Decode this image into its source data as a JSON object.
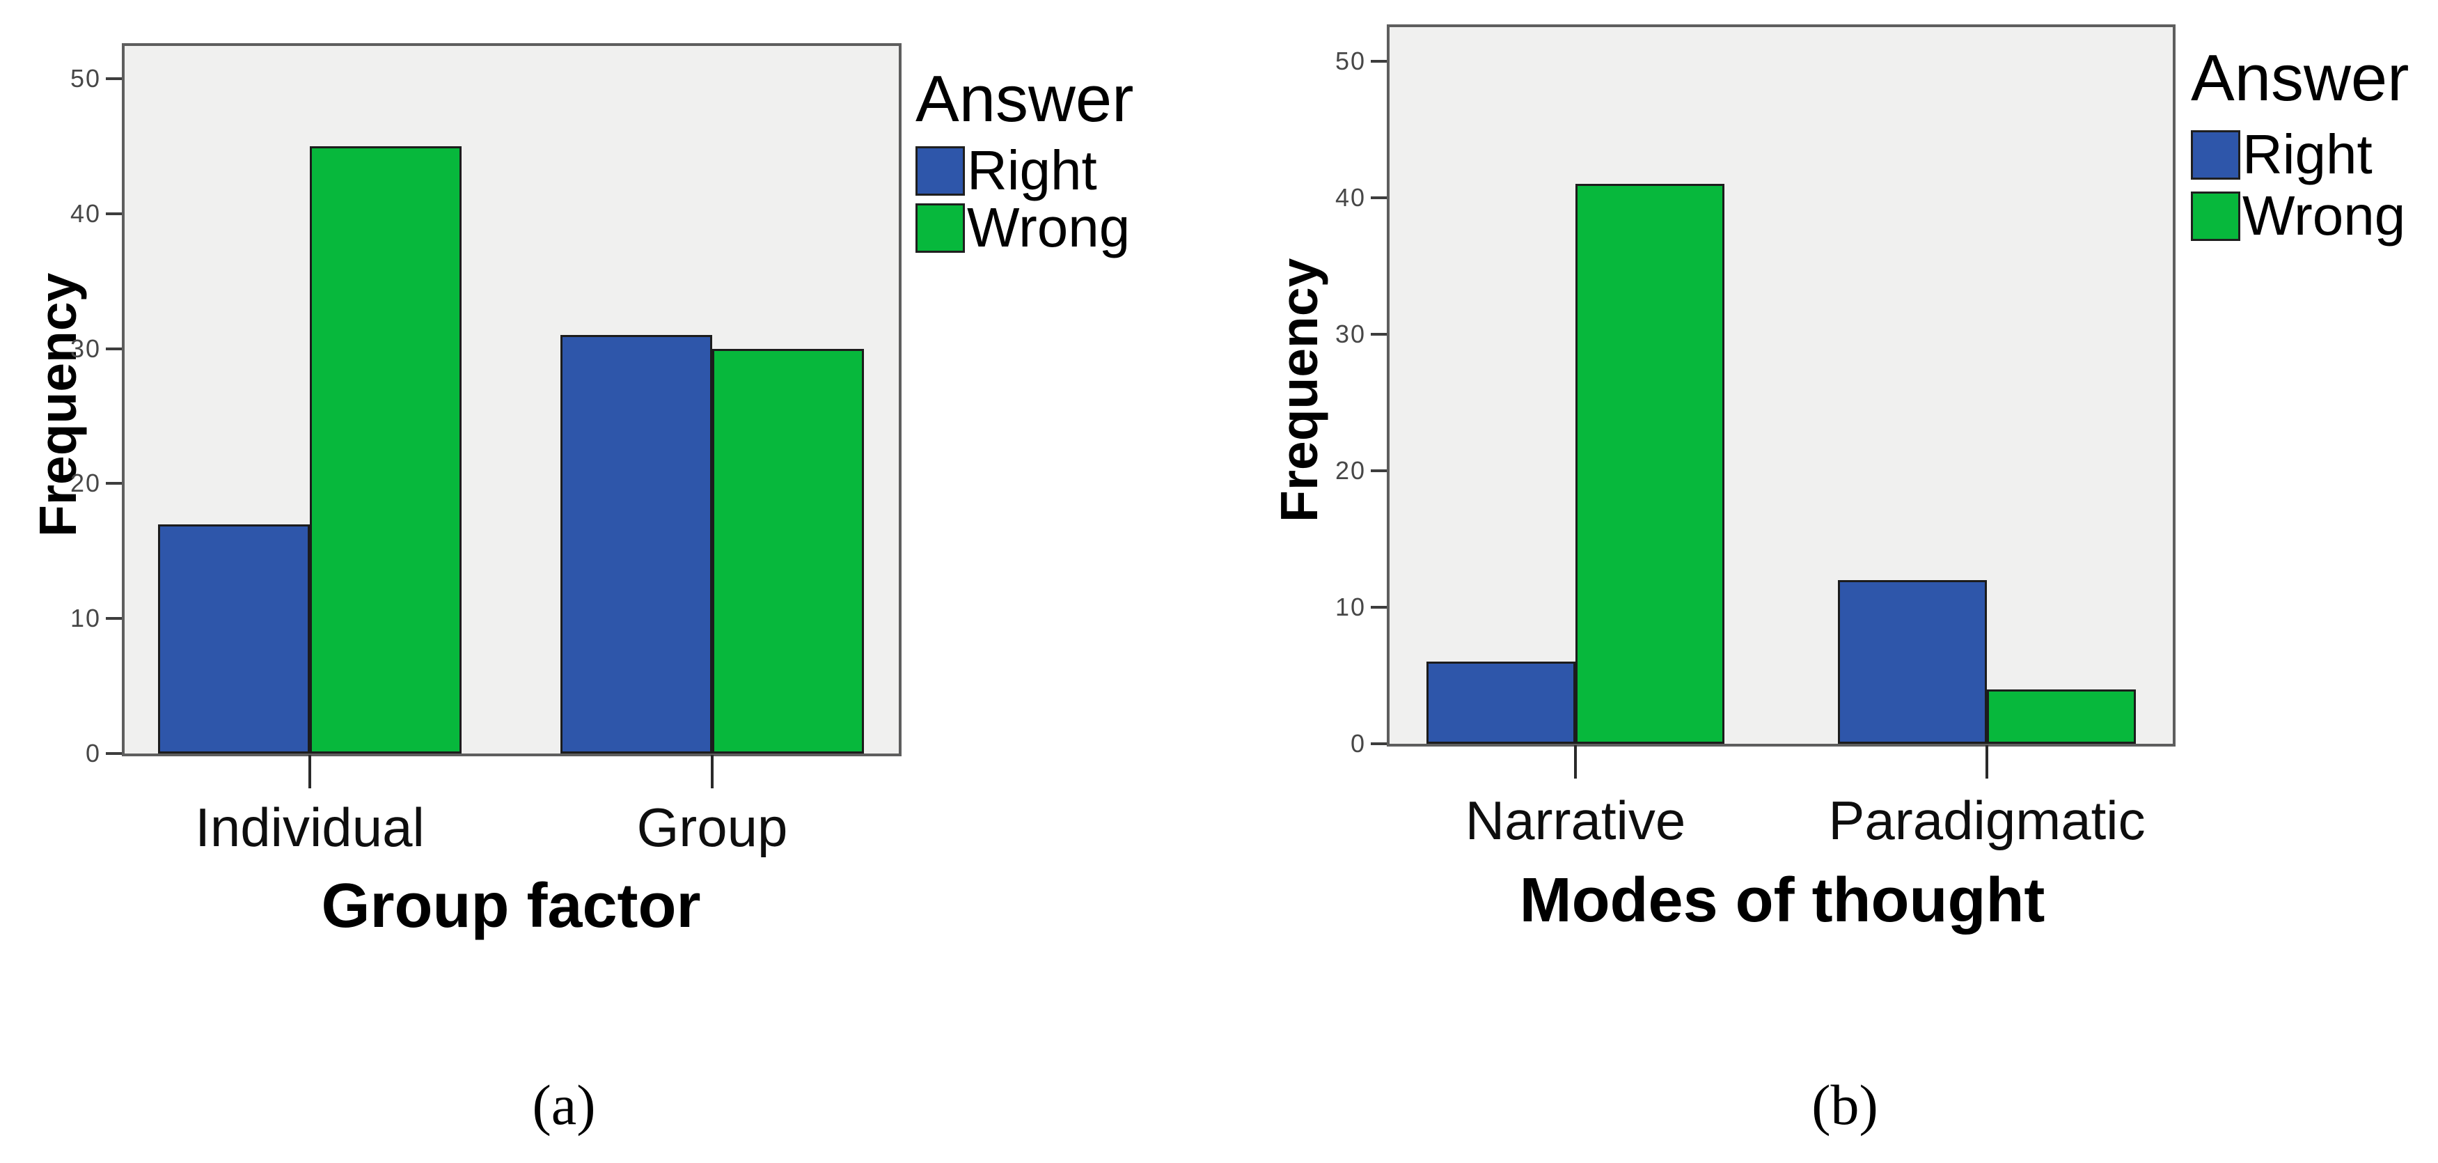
{
  "page": {
    "background": "#ffffff"
  },
  "chart_data": [
    {
      "type": "bar",
      "panel_label": "(a)",
      "title": "",
      "xlabel": "Group factor",
      "ylabel": "Frequency",
      "categories": [
        "Individual",
        "Group"
      ],
      "series": [
        {
          "name": "Right",
          "color": "#2E56AA",
          "values": [
            17,
            31
          ]
        },
        {
          "name": "Wrong",
          "color": "#07B83C",
          "values": [
            45,
            30
          ]
        }
      ],
      "ylim": [
        0,
        50
      ],
      "yticks": [
        0,
        10,
        20,
        30,
        40,
        50
      ],
      "legend_title": "Answer",
      "legend_position": "outside-top-right",
      "grid": false,
      "plot_bg": "#F0F0EF",
      "plot_border": "#5E5E5E",
      "bar_border": "#1C1C1C",
      "tick_color": "#3D3D3D"
    },
    {
      "type": "bar",
      "panel_label": "(b)",
      "title": "",
      "xlabel": "Modes of thought",
      "ylabel": "Frequency",
      "categories": [
        "Narrative",
        "Paradigmatic"
      ],
      "series": [
        {
          "name": "Right",
          "color": "#2E56AA",
          "values": [
            6,
            12
          ]
        },
        {
          "name": "Wrong",
          "color": "#07B83C",
          "values": [
            41,
            4
          ]
        }
      ],
      "ylim": [
        0,
        50
      ],
      "yticks": [
        0,
        10,
        20,
        30,
        40,
        50
      ],
      "legend_title": "Answer",
      "legend_position": "outside-top-right",
      "grid": false,
      "plot_bg": "#F0F0EF",
      "plot_border": "#5E5E5E",
      "bar_border": "#1C1C1C",
      "tick_color": "#3D3D3D"
    }
  ]
}
